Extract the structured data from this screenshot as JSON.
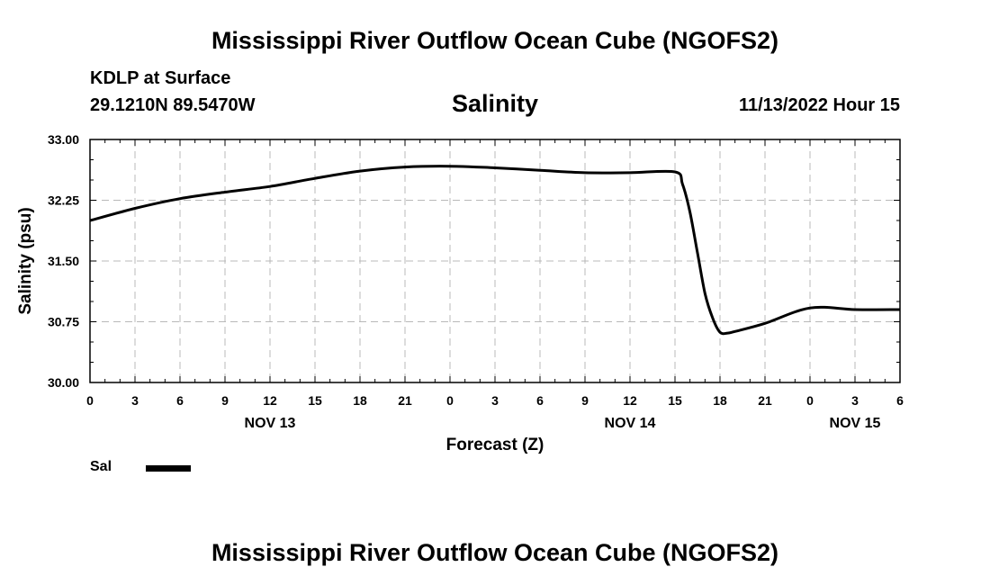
{
  "header": {
    "title": "Mississippi River Outflow Ocean Cube (NGOFS2)",
    "station": "KDLP at Surface",
    "coords": "29.1210N  89.5470W",
    "timestamp": "11/13/2022 Hour 15"
  },
  "footer": {
    "title": "Mississippi River Outflow Ocean Cube (NGOFS2)"
  },
  "chart_data": {
    "type": "line",
    "title": "Salinity",
    "xlabel": "Forecast (Z)",
    "ylabel": "Salinity (psu)",
    "ylim": [
      30.0,
      33.0
    ],
    "yticks": [
      "30.00",
      "30.75",
      "31.50",
      "32.25",
      "33.00"
    ],
    "xlim": [
      0,
      54
    ],
    "x_tick_labels": [
      "0",
      "3",
      "6",
      "9",
      "12",
      "15",
      "18",
      "21",
      "0",
      "3",
      "6",
      "9",
      "12",
      "15",
      "18",
      "21",
      "0",
      "3",
      "6"
    ],
    "date_labels": [
      {
        "label": "NOV 13",
        "hour": 12
      },
      {
        "label": "NOV 14",
        "hour": 36
      },
      {
        "label": "NOV 15",
        "hour": 51
      }
    ],
    "grid": true,
    "series": [
      {
        "name": "Sal",
        "color": "#000000",
        "x": [
          0,
          3,
          6,
          9,
          12,
          15,
          18,
          21,
          24,
          27,
          30,
          33,
          36,
          39,
          39.5,
          40,
          40.5,
          41,
          41.5,
          42,
          42.5,
          43,
          45,
          48,
          51,
          54
        ],
        "y": [
          32.0,
          32.15,
          32.27,
          32.35,
          32.42,
          32.52,
          32.61,
          32.66,
          32.67,
          32.65,
          32.62,
          32.59,
          32.59,
          32.6,
          32.45,
          32.1,
          31.6,
          31.1,
          30.8,
          30.62,
          30.61,
          30.63,
          30.73,
          30.92,
          30.9,
          30.9
        ]
      }
    ]
  },
  "legend": {
    "label": "Sal"
  }
}
